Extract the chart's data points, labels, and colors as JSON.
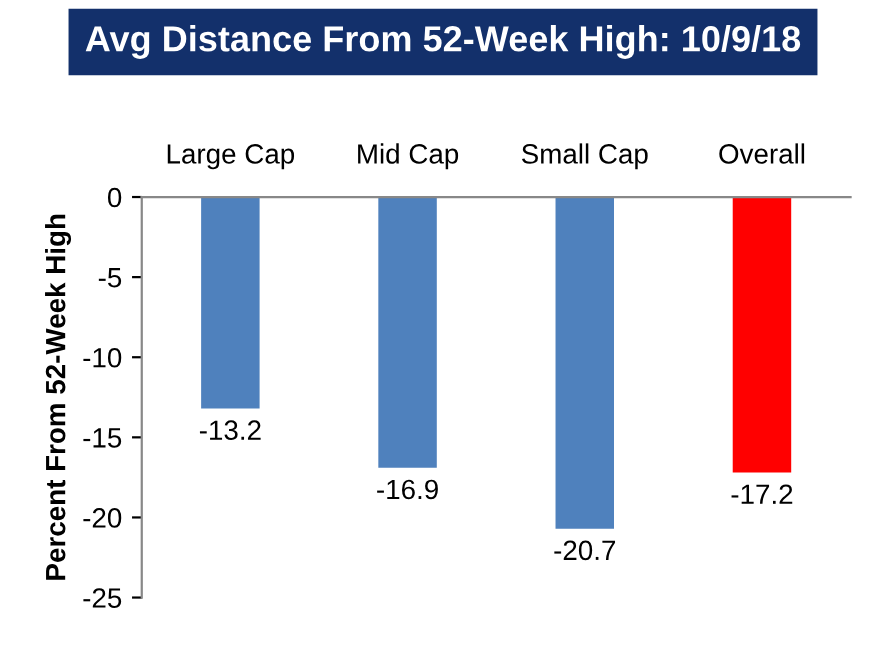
{
  "chart_data": {
    "type": "bar",
    "title": "Avg Distance From 52-Week High: 10/9/18",
    "ylabel": "Percent From 52-Week High",
    "categories": [
      "Large Cap",
      "Mid Cap",
      "Small Cap",
      "Overall"
    ],
    "values": [
      -13.2,
      -16.9,
      -20.7,
      -17.2
    ],
    "colors": [
      "#4f81bd",
      "#4f81bd",
      "#4f81bd",
      "#ff0000"
    ],
    "ylim": [
      -25,
      0
    ],
    "yticks": [
      -25,
      -20,
      -15,
      -10,
      -5,
      0
    ],
    "grid": false,
    "data_labels": true
  }
}
